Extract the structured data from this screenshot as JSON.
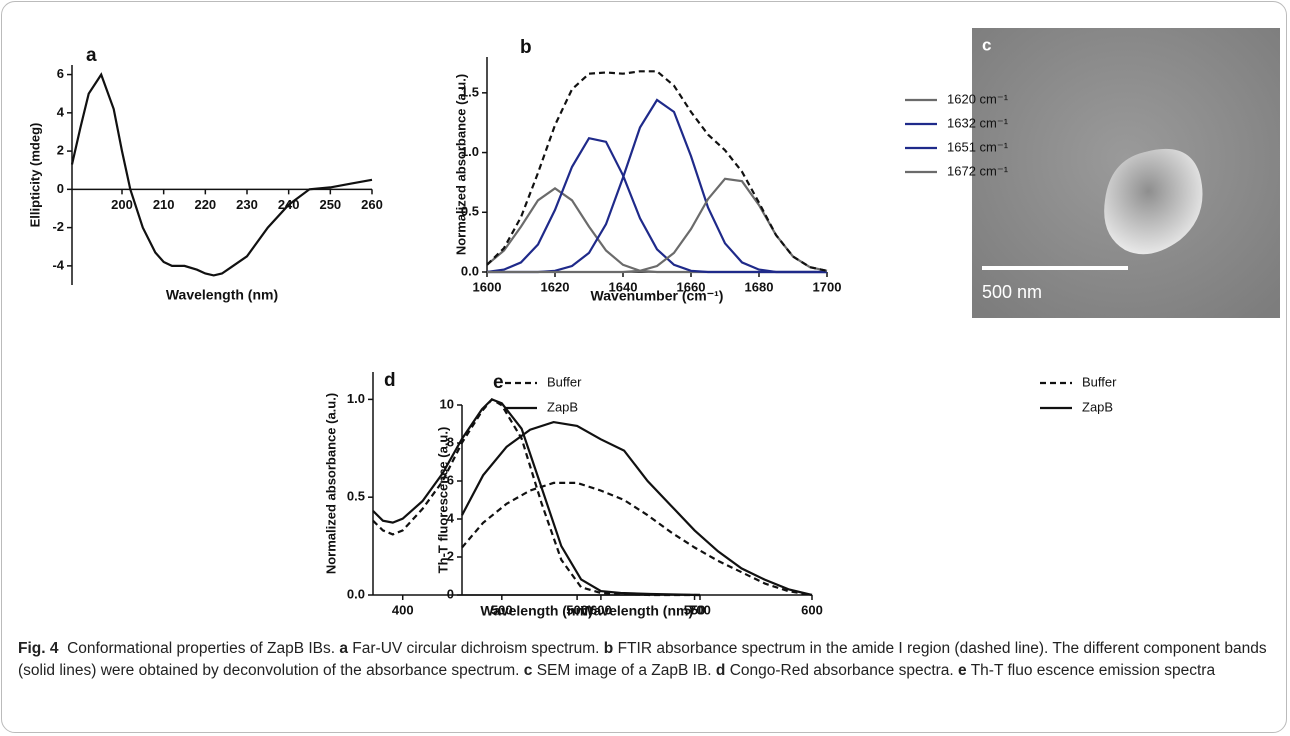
{
  "chart_data": [
    {
      "type": "line",
      "panel": "a",
      "x_label": "Wavelength (nm)",
      "y_label": "Ellipticity (mdeg)",
      "x": [
        188,
        190,
        192,
        195,
        198,
        200,
        202,
        205,
        208,
        210,
        212,
        215,
        218,
        220,
        222,
        224,
        226,
        230,
        235,
        240,
        245,
        250,
        255,
        260
      ],
      "series": [
        {
          "name": null,
          "color": "#111111",
          "style": "solid",
          "values": [
            1.3,
            3.2,
            5.0,
            6.0,
            4.2,
            2.0,
            0.0,
            -2.0,
            -3.3,
            -3.8,
            -4.0,
            -4.0,
            -4.2,
            -4.4,
            -4.5,
            -4.4,
            -4.1,
            -3.5,
            -2.0,
            -0.8,
            0.0,
            0.1,
            0.3,
            0.5
          ]
        }
      ],
      "xlim": [
        188,
        260
      ],
      "ylim": [
        -5,
        6.5
      ],
      "xticks": [
        200,
        210,
        220,
        230,
        240,
        250,
        260
      ],
      "yticks": [
        -4,
        -2,
        0,
        2,
        4,
        6
      ]
    },
    {
      "type": "line",
      "panel": "b",
      "x_label": "Wavenumber (cm⁻¹)",
      "y_label": "Normalized absorbance (a.u.)",
      "x": [
        1600,
        1605,
        1610,
        1615,
        1620,
        1625,
        1630,
        1635,
        1640,
        1645,
        1650,
        1655,
        1660,
        1665,
        1670,
        1675,
        1680,
        1685,
        1690,
        1695,
        1700
      ],
      "series": [
        {
          "name": "1620 cm⁻¹",
          "color": "#6b6b6b",
          "style": "solid",
          "values": [
            0.06,
            0.18,
            0.38,
            0.6,
            0.7,
            0.6,
            0.38,
            0.18,
            0.06,
            0.01,
            0,
            0,
            0,
            0,
            0,
            0,
            0,
            0,
            0,
            0,
            0
          ]
        },
        {
          "name": "1632 cm⁻¹",
          "color": "#1f2a8a",
          "style": "solid",
          "values": [
            0,
            0.02,
            0.08,
            0.23,
            0.52,
            0.88,
            1.12,
            1.09,
            0.81,
            0.45,
            0.19,
            0.06,
            0.01,
            0,
            0,
            0,
            0,
            0,
            0,
            0,
            0
          ]
        },
        {
          "name": "1651 cm⁻¹",
          "color": "#1f2a8a",
          "style": "solid",
          "values": [
            0,
            0,
            0,
            0,
            0.01,
            0.05,
            0.16,
            0.4,
            0.79,
            1.21,
            1.44,
            1.34,
            0.97,
            0.54,
            0.24,
            0.08,
            0.02,
            0,
            0,
            0,
            0
          ]
        },
        {
          "name": "1672 cm⁻¹",
          "color": "#6b6b6b",
          "style": "solid",
          "values": [
            0,
            0,
            0,
            0,
            0,
            0,
            0,
            0,
            0,
            0.01,
            0.05,
            0.16,
            0.36,
            0.61,
            0.78,
            0.76,
            0.56,
            0.31,
            0.13,
            0.04,
            0.01
          ]
        },
        {
          "name": null,
          "color": "#111111",
          "style": "dashed",
          "values": [
            0.06,
            0.2,
            0.46,
            0.83,
            1.23,
            1.53,
            1.66,
            1.67,
            1.66,
            1.68,
            1.68,
            1.56,
            1.34,
            1.15,
            1.02,
            0.84,
            0.58,
            0.31,
            0.13,
            0.04,
            0.01
          ]
        }
      ],
      "xlim": [
        1600,
        1700
      ],
      "ylim": [
        0,
        1.8
      ],
      "xticks": [
        1600,
        1620,
        1640,
        1660,
        1680,
        1700
      ],
      "yticks": [
        {
          "value": 0,
          "label": "0.0"
        },
        0.5,
        {
          "value": 1,
          "label": "1.0"
        },
        1.5
      ]
    },
    {
      "type": "line",
      "panel": "d",
      "x_label": "Wavelength (nm)",
      "y_label": "Normalized absorbance (a.u.)",
      "x": [
        370,
        380,
        390,
        400,
        420,
        440,
        460,
        480,
        490,
        500,
        520,
        540,
        560,
        580,
        600,
        620,
        650,
        700
      ],
      "series": [
        {
          "name": "Buffer",
          "color": "#111111",
          "style": "dashed",
          "values": [
            0.38,
            0.33,
            0.31,
            0.33,
            0.44,
            0.58,
            0.78,
            0.94,
            1.0,
            0.97,
            0.8,
            0.47,
            0.18,
            0.04,
            0.01,
            0.005,
            0,
            0
          ]
        },
        {
          "name": "ZapB",
          "color": "#111111",
          "style": "solid",
          "values": [
            0.43,
            0.38,
            0.37,
            0.39,
            0.48,
            0.62,
            0.8,
            0.95,
            1.0,
            0.98,
            0.85,
            0.55,
            0.25,
            0.08,
            0.02,
            0.01,
            0.005,
            0
          ]
        }
      ],
      "xlim": [
        370,
        700
      ],
      "ylim": [
        0,
        1.14
      ],
      "xticks": [
        400,
        500,
        600,
        700
      ],
      "yticks": [
        {
          "value": 0,
          "label": "0.0"
        },
        0.5,
        {
          "value": 1,
          "label": "1.0"
        }
      ]
    },
    {
      "type": "line",
      "panel": "e",
      "x_label": "Wavelength (nm)",
      "y_label": "Th-T fluorescence (a.u.)",
      "x": [
        451,
        460,
        470,
        480,
        490,
        500,
        510,
        520,
        530,
        540,
        550,
        560,
        570,
        580,
        590,
        600
      ],
      "series": [
        {
          "name": "Buffer",
          "color": "#111111",
          "style": "dashed",
          "values": [
            2.5,
            3.8,
            4.8,
            5.5,
            5.9,
            5.9,
            5.5,
            5.0,
            4.2,
            3.3,
            2.5,
            1.8,
            1.2,
            0.6,
            0.2,
            0.0
          ]
        },
        {
          "name": "ZapB",
          "color": "#111111",
          "style": "solid",
          "values": [
            4.2,
            6.3,
            7.8,
            8.7,
            9.1,
            8.9,
            8.2,
            7.6,
            6.0,
            4.7,
            3.4,
            2.3,
            1.4,
            0.8,
            0.3,
            0.0
          ]
        }
      ],
      "xlim": [
        451,
        600
      ],
      "ylim": [
        0,
        10
      ],
      "xticks": [
        500,
        550,
        600
      ],
      "yticks": [
        0,
        2,
        4,
        6,
        8,
        10
      ]
    }
  ],
  "image": {
    "panel": "c",
    "scale_bar": "500 nm"
  },
  "caption": {
    "label": "Fig. 4",
    "text": "Conformational properties of ZapB IBs.",
    "parts": [
      {
        "label": "a",
        "text": "Far-UV circular dichroism spectrum."
      },
      {
        "label": "b",
        "text": "FTIR absorbance spectrum in the amide I region (dashed line). The different component bands (solid lines) were obtained by deconvolution of the absorbance spectrum."
      },
      {
        "label": "c",
        "text": "SEM image of a ZapB IB."
      },
      {
        "label": "d",
        "text": "Congo-Red absorbance spectra."
      },
      {
        "label": "e",
        "text": "Th-T fluo escence emission spectra"
      }
    ]
  }
}
